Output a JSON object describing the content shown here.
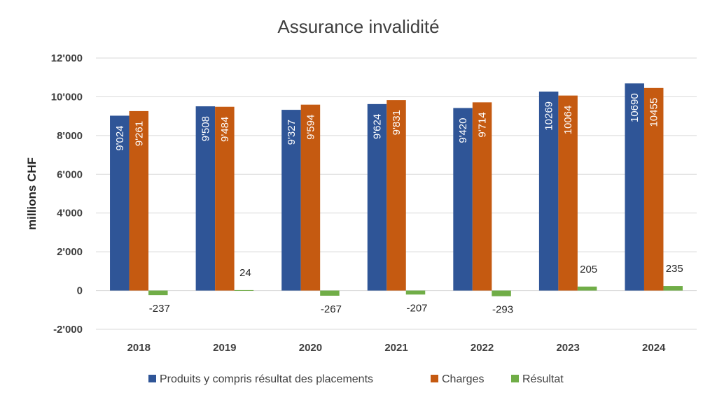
{
  "chart_data": {
    "type": "bar",
    "title": "Assurance invalidité",
    "ylabel": "millions CHF",
    "xlabel": "",
    "categories": [
      "2018",
      "2019",
      "2020",
      "2021",
      "2022",
      "2023",
      "2024"
    ],
    "ylim": [
      -2000,
      12000
    ],
    "yticks": [
      -2000,
      0,
      2000,
      4000,
      6000,
      8000,
      10000,
      12000
    ],
    "ytick_labels": [
      "-2'000",
      "0",
      "2'000",
      "4'000",
      "6'000",
      "8'000",
      "10'000",
      "12'000"
    ],
    "grid": true,
    "legend_position": "bottom",
    "series": [
      {
        "name": "Produits y compris résultat des placements",
        "color": "#2f5597",
        "values": [
          9024,
          9508,
          9327,
          9624,
          9420,
          10269,
          10690
        ],
        "labels": [
          "9'024",
          "9'508",
          "9'327",
          "9'624",
          "9'420",
          "10269",
          "10690"
        ]
      },
      {
        "name": "Charges",
        "color": "#c55a11",
        "values": [
          9261,
          9484,
          9594,
          9831,
          9714,
          10064,
          10455
        ],
        "labels": [
          "9'261",
          "9'484",
          "9'594",
          "9'831",
          "9'714",
          "10064",
          "10455"
        ]
      },
      {
        "name": "Résultat",
        "color": "#70ad47",
        "values": [
          -237,
          24,
          -267,
          -207,
          -293,
          205,
          235
        ],
        "labels": [
          "-237",
          "24",
          "-267",
          "-207",
          "-293",
          "205",
          "235"
        ]
      }
    ]
  }
}
